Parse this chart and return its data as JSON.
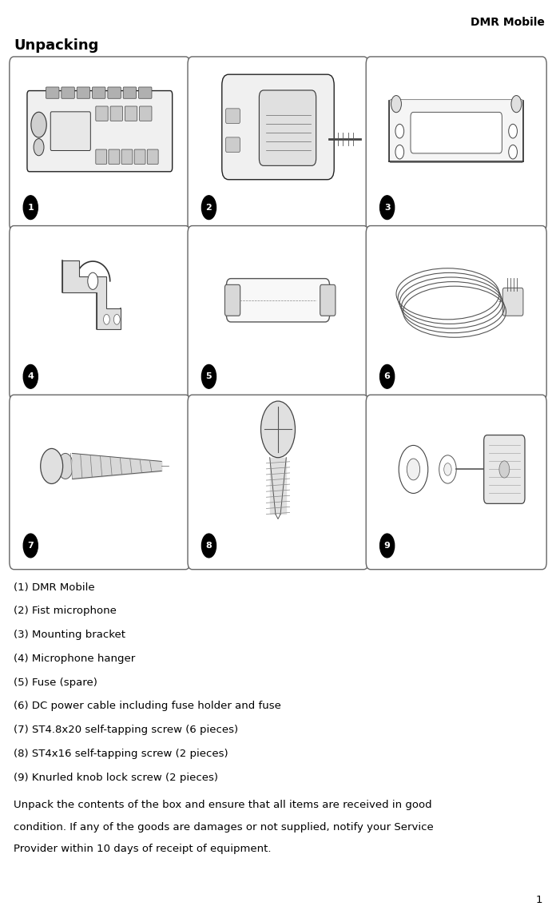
{
  "page_title": "DMR Mobile",
  "section_title": "Unpacking",
  "items": [
    "(1) DMR Mobile",
    "(2) Fist microphone",
    "(3) Mounting bracket",
    "(4) Microphone hanger",
    "(5) Fuse (spare)",
    "(6) DC power cable including fuse holder and fuse",
    "(7) ST4.8x20 self-tapping screw (6 pieces)",
    "(8) ST4x16 self-tapping screw (2 pieces)",
    "(9) Knurled knob lock screw (2 pieces)"
  ],
  "note_lines": [
    "Unpack the contents of the box and ensure that all items are received in good",
    "condition. If any of the goods are damages or not supplied, notify your Service",
    "Provider within 10 days of receipt of equipment."
  ],
  "page_number": "1",
  "bg_color": "#ffffff",
  "box_edge_color": "#666666",
  "number_labels": [
    "1",
    "2",
    "3",
    "4",
    "5",
    "6",
    "7",
    "8",
    "9"
  ],
  "page_title_fontsize": 10,
  "section_title_fontsize": 13,
  "body_fontsize": 9.5,
  "number_fontsize": 8
}
